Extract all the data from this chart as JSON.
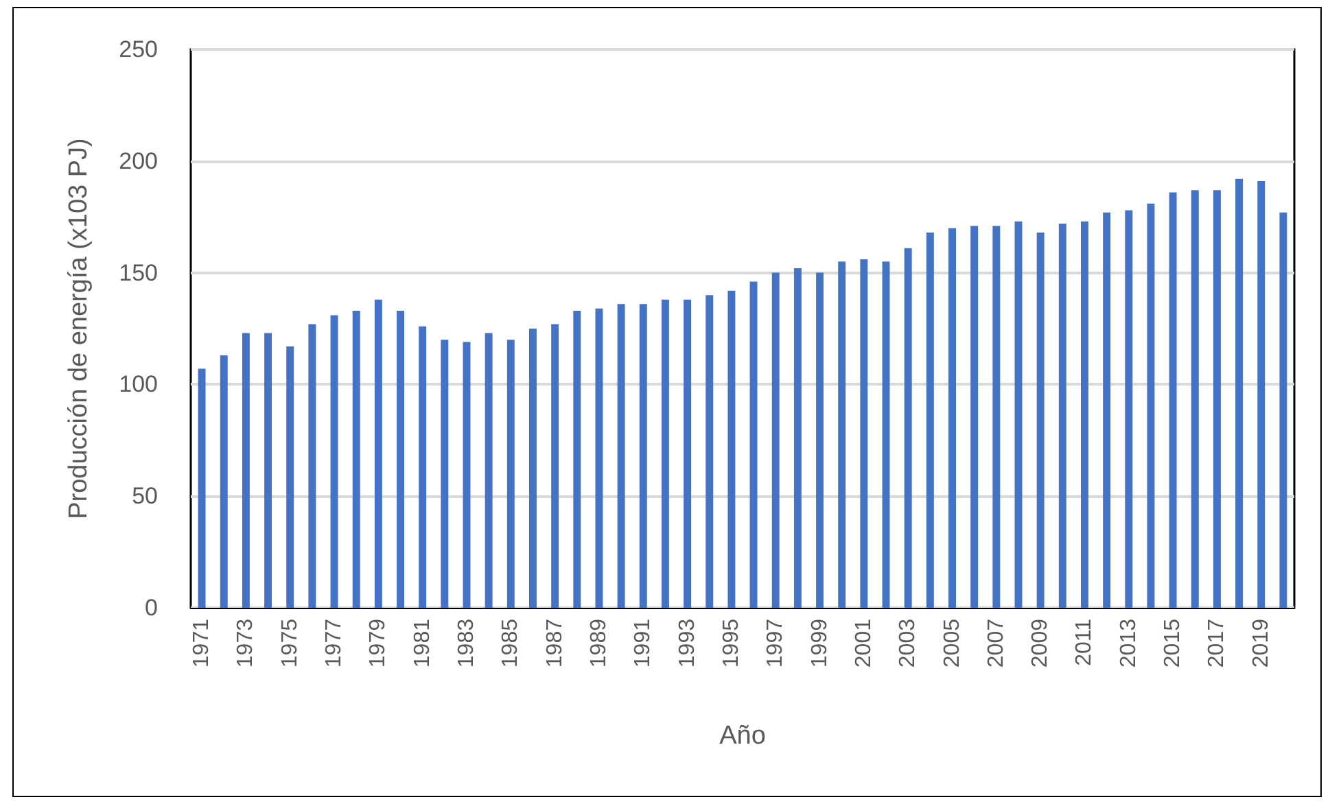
{
  "chart_data": {
    "type": "bar",
    "xlabel": "Año",
    "ylabel": "Producción de energía (x103 PJ)",
    "categories": [
      "1971",
      null,
      "1973",
      null,
      "1975",
      null,
      "1977",
      null,
      "1979",
      null,
      "1981",
      null,
      "1983",
      null,
      "1985",
      null,
      "1987",
      null,
      "1989",
      null,
      "1991",
      null,
      "1993",
      null,
      "1995",
      null,
      "1997",
      null,
      "1999",
      null,
      "2001",
      null,
      "2003",
      null,
      "2005",
      null,
      "2007",
      null,
      "2009",
      null,
      "2011",
      null,
      "2013",
      null,
      "2015",
      null,
      "2017",
      null,
      "2019",
      null
    ],
    "values": [
      107,
      113,
      123,
      123,
      117,
      127,
      131,
      133,
      138,
      133,
      126,
      120,
      119,
      123,
      120,
      125,
      127,
      133,
      134,
      136,
      136,
      138,
      138,
      140,
      142,
      146,
      150,
      152,
      150,
      155,
      156,
      155,
      161,
      168,
      170,
      171,
      171,
      173,
      168,
      172,
      173,
      177,
      178,
      181,
      186,
      187,
      187,
      192,
      191,
      177
    ],
    "color": "#4472c4",
    "ylim": [
      0,
      250
    ],
    "yticks": [
      0,
      50,
      100,
      150,
      200,
      250
    ],
    "grid": "y"
  }
}
